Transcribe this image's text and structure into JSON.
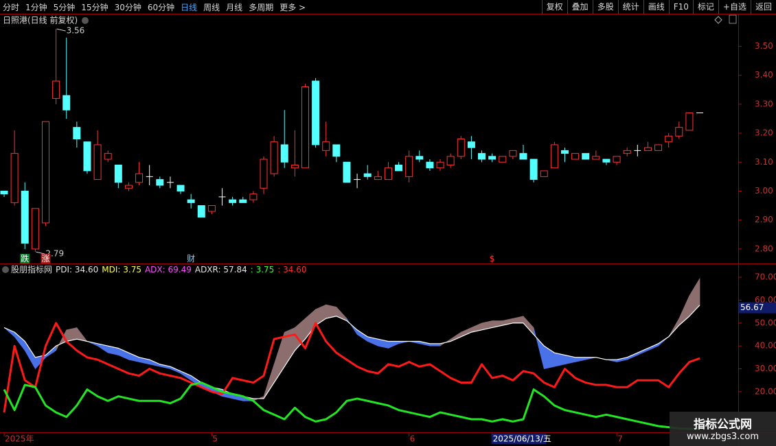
{
  "toolbar": {
    "left": [
      {
        "label": "分时"
      },
      {
        "label": "1分钟"
      },
      {
        "label": "5分钟"
      },
      {
        "label": "15分钟"
      },
      {
        "label": "30分钟"
      },
      {
        "label": "60分钟"
      },
      {
        "label": "日线",
        "active": true
      },
      {
        "label": "周线"
      },
      {
        "label": "月线"
      },
      {
        "label": "多周期"
      },
      {
        "label": "更多 >"
      }
    ],
    "right": [
      "复权",
      "叠加",
      "多股",
      "统计",
      "画线",
      "F10",
      "标记",
      "+自选",
      "返回"
    ]
  },
  "watermark": {
    "title": "指标公式网",
    "url": "www.zbgs3.com"
  },
  "chart_data": [
    {
      "type": "candlestick",
      "title": "日照港(日线 前复权)",
      "up_color": "#ff3232",
      "down_color": "#54ffff",
      "doji_color": "#ffffff",
      "ylim": [
        2.75,
        3.61
      ],
      "yticks": [
        {
          "value": 3.5,
          "label": "3.50"
        },
        {
          "value": 3.4,
          "label": "3.40"
        },
        {
          "value": 3.3,
          "label": "3.30"
        },
        {
          "value": 3.2,
          "label": "3.20"
        },
        {
          "value": 3.1,
          "label": "3.10"
        },
        {
          "value": 3.0,
          "label": "3.00"
        },
        {
          "value": 2.9,
          "label": "2.90"
        },
        {
          "value": 2.8,
          "label": "2.80"
        }
      ],
      "high_label": "3.56",
      "low_label": "2.79",
      "events": [
        {
          "index": 2,
          "label": "跌",
          "color": "#ffffff",
          "background": "#0a7a2a"
        },
        {
          "index": 4,
          "label": "涨",
          "color": "#ffffff",
          "background": "#a02020"
        },
        {
          "index": 18,
          "label": "财",
          "color": "#7fd0ff",
          "background": "#000000"
        },
        {
          "index": 47,
          "label": "$",
          "color": "#ff3232",
          "background": "#000000"
        }
      ],
      "open": [
        3.0,
        2.96,
        3.0,
        2.8,
        2.89,
        3.32,
        3.33,
        3.22,
        3.17,
        3.04,
        3.11,
        3.09,
        3.01,
        3.03,
        3.05,
        3.04,
        3.03,
        3.02,
        2.97,
        2.95,
        2.93,
        2.98,
        2.97,
        2.97,
        2.97,
        3.01,
        3.06,
        3.16,
        3.08,
        3.08,
        3.38,
        3.14,
        3.16,
        3.1,
        3.04,
        3.06,
        3.04,
        3.04,
        3.09,
        3.05,
        3.12,
        3.1,
        3.08,
        3.09,
        3.12,
        3.17,
        3.13,
        3.12,
        3.1,
        3.12,
        3.13,
        3.11,
        3.05,
        3.08,
        3.14,
        3.11,
        3.13,
        3.11,
        3.11,
        3.1,
        3.13,
        3.14,
        3.14,
        3.14,
        3.17,
        3.19,
        3.21,
        3.27
      ],
      "high": [
        3.0,
        3.21,
        3.03,
        2.94,
        3.24,
        3.56,
        3.53,
        3.24,
        3.17,
        3.21,
        3.14,
        3.09,
        3.03,
        3.1,
        3.09,
        3.05,
        3.05,
        3.02,
        2.99,
        2.95,
        2.95,
        3.01,
        2.98,
        2.98,
        3.0,
        3.12,
        3.19,
        3.28,
        3.21,
        3.37,
        3.39,
        3.24,
        3.16,
        3.1,
        3.06,
        3.09,
        3.07,
        3.1,
        3.1,
        3.14,
        3.14,
        3.11,
        3.11,
        3.13,
        3.19,
        3.19,
        3.14,
        3.13,
        3.12,
        3.14,
        3.16,
        3.11,
        3.07,
        3.17,
        3.15,
        3.13,
        3.13,
        3.14,
        3.11,
        3.12,
        3.15,
        3.16,
        3.17,
        3.16,
        3.2,
        3.24,
        3.27,
        3.27
      ],
      "low": [
        2.98,
        2.95,
        2.8,
        2.79,
        2.88,
        3.3,
        3.25,
        3.15,
        3.06,
        3.04,
        3.1,
        3.01,
        3.0,
        3.02,
        3.02,
        3.01,
        3.01,
        2.99,
        2.94,
        2.91,
        2.92,
        2.95,
        2.95,
        2.96,
        2.96,
        2.99,
        3.05,
        3.08,
        3.05,
        3.08,
        3.15,
        3.12,
        3.1,
        3.03,
        3.01,
        3.04,
        3.04,
        3.04,
        3.07,
        3.03,
        3.1,
        3.07,
        3.07,
        3.08,
        3.11,
        3.11,
        3.1,
        3.1,
        3.1,
        3.11,
        3.11,
        3.03,
        3.05,
        3.08,
        3.1,
        3.11,
        3.11,
        3.11,
        3.09,
        3.09,
        3.12,
        3.12,
        3.14,
        3.14,
        3.15,
        3.18,
        3.21,
        3.27
      ],
      "close": [
        2.99,
        3.13,
        2.82,
        2.94,
        3.24,
        3.38,
        3.28,
        3.18,
        3.07,
        3.16,
        3.13,
        3.03,
        3.02,
        3.06,
        3.05,
        3.02,
        3.03,
        3.0,
        2.96,
        2.91,
        2.95,
        2.98,
        2.96,
        2.96,
        2.99,
        3.11,
        3.17,
        3.1,
        3.09,
        3.36,
        3.16,
        3.17,
        3.12,
        3.03,
        3.04,
        3.05,
        3.05,
        3.08,
        3.07,
        3.12,
        3.11,
        3.08,
        3.1,
        3.12,
        3.18,
        3.15,
        3.11,
        3.11,
        3.12,
        3.14,
        3.11,
        3.04,
        3.07,
        3.16,
        3.13,
        3.13,
        3.11,
        3.12,
        3.1,
        3.12,
        3.14,
        3.14,
        3.15,
        3.16,
        3.19,
        3.22,
        3.27,
        3.27
      ]
    },
    {
      "type": "line",
      "title": "股朋指标网",
      "legend": [
        {
          "text": "PDI: 34.60",
          "color": "#e8e8e8"
        },
        {
          "text": "MDI: 3.75",
          "color": "#ffff50"
        },
        {
          "text": "ADX: 69.49",
          "color": "#ff50ff"
        },
        {
          "text": "ADXR: 57.84",
          "color": "#e8e8e8"
        },
        {
          "text": ": 3.75",
          "color": "#30ff30"
        },
        {
          "text": ": 34.60",
          "color": "#ff3030"
        }
      ],
      "ylim": [
        2.3,
        75.7
      ],
      "yticks": [
        {
          "value": 70,
          "label": "70.00"
        },
        {
          "value": 60,
          "label": "60.00"
        },
        {
          "value": 50,
          "label": "50.00"
        },
        {
          "value": 40,
          "label": "40.00"
        },
        {
          "value": 30,
          "label": "30.00"
        },
        {
          "value": 20,
          "label": "20.00"
        }
      ],
      "cursor_value": 56.67,
      "crosshair_index": 47,
      "cloud_up_color": "#8c6e6e",
      "cloud_down_color": "#4a72e8",
      "categories": [
        "2025年",
        null,
        null,
        null,
        null,
        null,
        null,
        null,
        null,
        null,
        null,
        null,
        null,
        null,
        null,
        null,
        null,
        null,
        null,
        null,
        "5",
        null,
        null,
        null,
        null,
        null,
        null,
        null,
        null,
        null,
        null,
        null,
        null,
        null,
        null,
        null,
        null,
        null,
        null,
        "6",
        null,
        null,
        null,
        null,
        null,
        null,
        null,
        "2025/06/13/五",
        null,
        null,
        null,
        null,
        null,
        null,
        null,
        null,
        null,
        null,
        null,
        "7",
        null,
        null,
        null,
        null,
        null,
        null,
        null,
        null
      ],
      "series": [
        {
          "name": "PDI",
          "color": "#ff1a1a",
          "width": 3,
          "values": [
            11,
            40,
            25,
            22,
            40,
            50,
            42,
            38,
            35,
            34,
            32,
            30,
            28,
            27,
            30,
            28,
            27,
            26,
            24,
            22,
            20,
            19,
            26,
            25,
            24,
            27,
            43,
            44,
            45,
            39,
            50,
            42,
            37,
            34,
            31,
            29,
            28,
            32,
            31,
            33,
            31,
            32,
            29,
            26,
            24,
            24,
            32,
            26,
            27,
            25,
            29,
            28,
            24,
            22,
            30,
            26,
            24,
            23,
            23,
            22,
            22,
            25,
            25,
            25,
            22,
            28,
            33,
            34.6
          ]
        },
        {
          "name": "MDI",
          "color": "#22e622",
          "width": 3,
          "values": [
            21,
            12,
            23,
            22,
            14,
            11,
            9,
            14,
            21,
            18,
            16,
            18,
            17,
            16,
            16,
            16,
            15,
            17,
            23,
            24,
            22,
            20,
            19,
            18,
            16,
            12,
            10,
            8,
            13,
            9,
            7,
            8,
            11,
            16,
            17,
            16,
            15,
            14,
            12,
            11,
            10,
            9,
            11,
            10,
            9,
            8,
            8,
            7,
            8,
            7,
            8,
            21,
            18,
            14,
            12,
            11,
            10,
            9,
            10,
            9,
            8,
            7,
            6,
            5,
            4.5,
            4,
            3.8,
            3.75
          ]
        },
        {
          "name": "ADX",
          "color": "#ffffff",
          "width": 0,
          "values": [
            48,
            44,
            38,
            30,
            35,
            38,
            47,
            48,
            42,
            40,
            37,
            36,
            34,
            33,
            32,
            31,
            30,
            28,
            25,
            22,
            20,
            18,
            17,
            16,
            16,
            18,
            32,
            46,
            48,
            52,
            56,
            58,
            57,
            52,
            45,
            42,
            40,
            39,
            41,
            42,
            41,
            40,
            40,
            43,
            46,
            48,
            50,
            51,
            51,
            52,
            53,
            48,
            30,
            31,
            32,
            33,
            34,
            35,
            34,
            33,
            34,
            36,
            38,
            40,
            44,
            52,
            62,
            69.49
          ]
        },
        {
          "name": "ADXR",
          "color": "#ffffff",
          "width": 1.2,
          "values": [
            48,
            46,
            42,
            35,
            36,
            40,
            42,
            43,
            42,
            41,
            40,
            39,
            37,
            35,
            34,
            32,
            31,
            29,
            27,
            24,
            22,
            21,
            19,
            18,
            17,
            17,
            24,
            31,
            38,
            43,
            49,
            52,
            53,
            51,
            47,
            44,
            43,
            42,
            42,
            42,
            42,
            41,
            41,
            42,
            44,
            46,
            47,
            48,
            49,
            50,
            50,
            45,
            40,
            37,
            36,
            35,
            35,
            35,
            34,
            34,
            35,
            37,
            39,
            41,
            44,
            49,
            53,
            57.84
          ]
        }
      ]
    }
  ]
}
